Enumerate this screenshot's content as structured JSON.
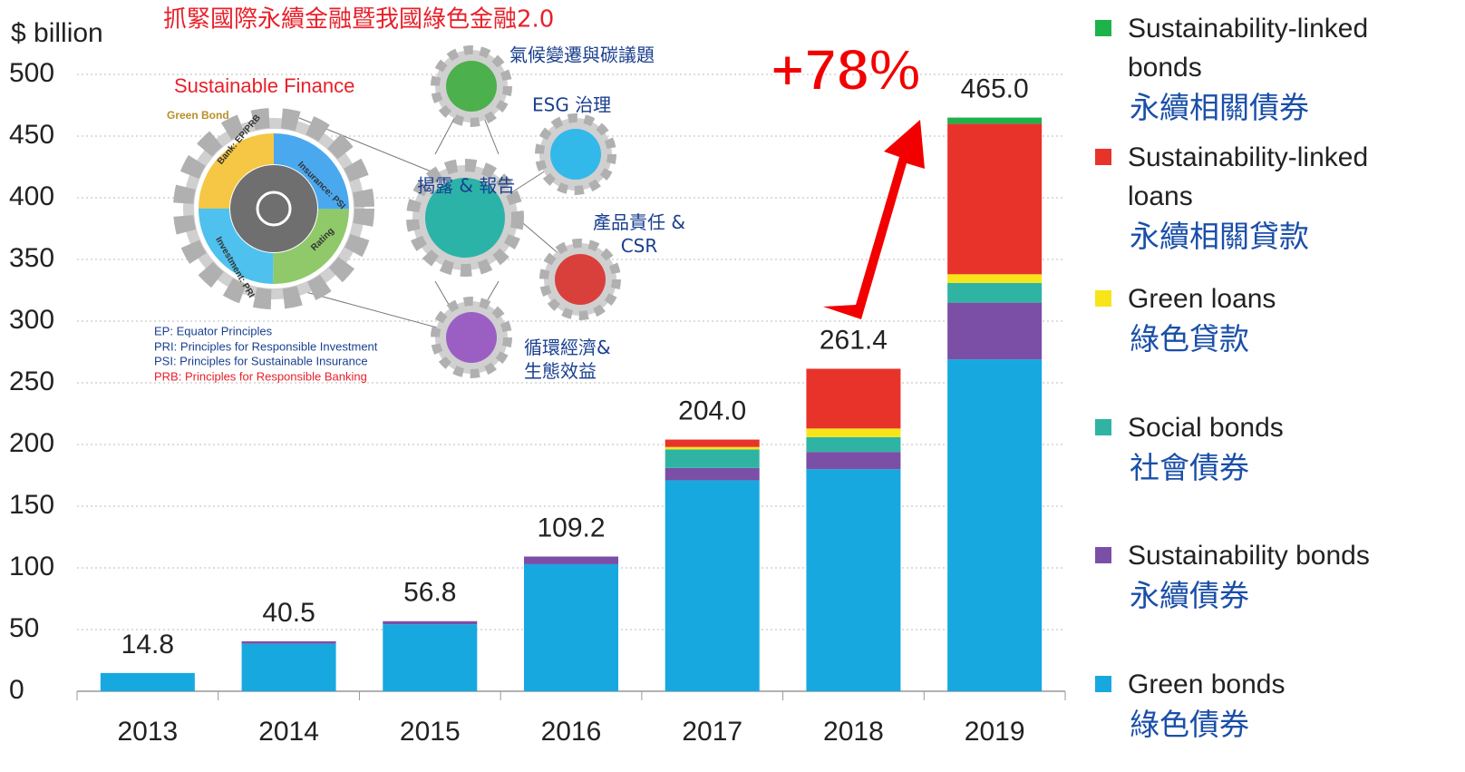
{
  "chart_data": {
    "type": "bar",
    "stacked": true,
    "y_label": "$ billion",
    "categories": [
      "2013",
      "2014",
      "2015",
      "2016",
      "2017",
      "2018",
      "2019"
    ],
    "series": [
      {
        "name": "Green bonds",
        "name_zh": "綠色債券",
        "color": "#17a8e0",
        "values": [
          14.8,
          38.5,
          54.3,
          103,
          171,
          180,
          269
        ]
      },
      {
        "name": "Sustainability bonds",
        "name_zh": "永續債券",
        "color": "#7b4fa6",
        "values": [
          0,
          2,
          2.5,
          6.2,
          10,
          14,
          46
        ]
      },
      {
        "name": "Social bonds",
        "name_zh": "社會債券",
        "color": "#2fb4a4",
        "values": [
          0,
          0,
          0,
          0,
          15,
          12,
          16
        ]
      },
      {
        "name": "Green loans",
        "name_zh": "綠色貸款",
        "color": "#f7e51a",
        "values": [
          0,
          0,
          0,
          0,
          2,
          7,
          7
        ]
      },
      {
        "name": "Sustainability-linked loans",
        "name_zh": "永續相關貸款",
        "color": "#e8332a",
        "values": [
          0,
          0,
          0,
          0,
          6,
          48.4,
          122
        ]
      },
      {
        "name": "Sustainability-linked bonds",
        "name_zh": "永續相關債券",
        "color": "#1db24a",
        "values": [
          0,
          0,
          0,
          0,
          0,
          0,
          5
        ]
      }
    ],
    "totals": {
      "values": [
        14.8,
        40.5,
        56.8,
        109.2,
        204,
        261.4,
        465
      ],
      "value_labels": [
        "14.8",
        "40.5",
        "56.8",
        "109.2",
        "204.0",
        "261.4",
        "465.0"
      ]
    },
    "ylim": [
      0,
      500
    ],
    "yticks": [
      0,
      50,
      100,
      150,
      200,
      250,
      300,
      350,
      400,
      450,
      500
    ],
    "grid": true,
    "annotation": "+78%",
    "inset": {
      "title": "抓緊國際永續金融暨我國綠色金融2.0",
      "subtitle": "Sustainable Finance",
      "green_bond": "Green Bond",
      "ring": [
        "Bank: EP/PRB",
        "Insurance: PSI",
        "Rating",
        "Investment: PRI"
      ],
      "topics": [
        "氣候變遷與碳議題",
        "ESG 治理",
        "揭露 & 報告",
        "產品責任 & CSR",
        "循環經濟& 生態效益"
      ],
      "notes": [
        "EP: Equator Principles",
        "PRI: Principles for Responsible Investment",
        "PSI: Principles for Sustainable Insurance",
        "PRB: Principles for Responsible Banking"
      ]
    }
  }
}
